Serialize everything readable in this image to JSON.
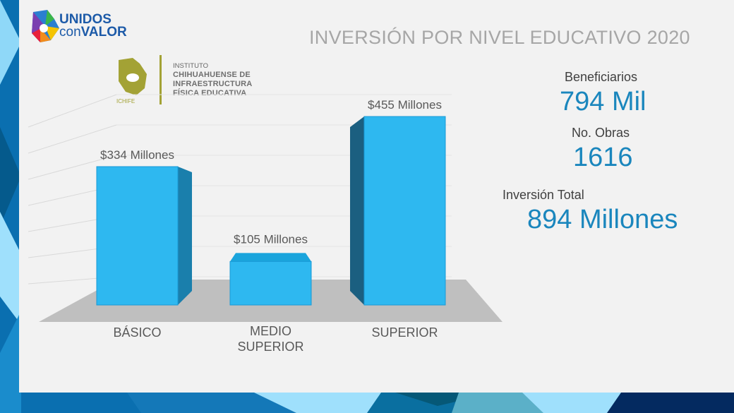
{
  "header": {
    "title": "INVERSIÓN POR NIVEL EDUCATIVO 2020"
  },
  "logos": {
    "unidos_line1": "UNIDOS",
    "unidos_line2_a": "con",
    "unidos_line2_b": "VALOR",
    "ichife_line1": "INSTITUTO",
    "ichife_line2": "CHIHUAHUENSE DE",
    "ichife_line3": "INFRAESTRUCTURA",
    "ichife_line4": "FÍSICA EDUCATIVA",
    "ichife_abbr": "ICHIFE"
  },
  "stats": {
    "beneficiarios_label": "Beneficiarios",
    "beneficiarios_value": "794 Mil",
    "obras_label": "No. Obras",
    "obras_value": "1616",
    "inversion_label": "Inversión Total",
    "inversion_value": "894 Millones"
  },
  "colors": {
    "bar": "#2eb8f0",
    "accent": "#1a86bd",
    "floor": "#bfbfbf"
  },
  "chart_data": {
    "type": "bar",
    "style": "3d",
    "categories": [
      "BÁSICO",
      "MEDIO\nSUPERIOR",
      "SUPERIOR"
    ],
    "values": [
      334,
      105,
      455
    ],
    "data_labels": [
      "$334 Millones",
      "$105 Millones",
      "$455 Millones"
    ],
    "unit": "Millones de pesos",
    "grid": true,
    "legend": "none"
  }
}
